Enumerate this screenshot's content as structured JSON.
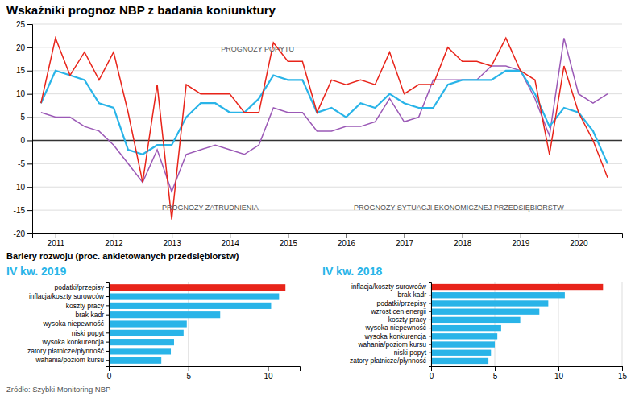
{
  "chart_data": [
    {
      "type": "line",
      "title": "Wskaźniki prognoz NBP z badania koniunktury",
      "annotations": [
        "PROGNOZY POPYTU",
        "PROGNOZY ZATRUDNIENIA",
        "PROGNOZY SYTUACJI EKONOMICZNEJ PRZEDSIĘBIORSTW"
      ],
      "x": [
        2010.75,
        2011.0,
        2011.25,
        2011.5,
        2011.75,
        2012.0,
        2012.25,
        2012.5,
        2012.75,
        2013.0,
        2013.25,
        2013.5,
        2013.75,
        2014.0,
        2014.25,
        2014.5,
        2014.75,
        2015.0,
        2015.25,
        2015.5,
        2015.75,
        2016.0,
        2016.25,
        2016.5,
        2016.75,
        2017.0,
        2017.25,
        2017.5,
        2017.75,
        2018.0,
        2018.25,
        2018.5,
        2018.75,
        2019.0,
        2019.25,
        2019.5,
        2019.75,
        2020.0,
        2020.25,
        2020.5
      ],
      "series": [
        {
          "color": "#e8241a",
          "values": [
            8,
            22,
            14,
            19,
            13,
            19,
            6,
            -9,
            12,
            -17,
            12,
            10,
            10,
            10,
            6,
            6,
            21,
            17,
            17,
            6,
            13,
            12,
            13,
            12,
            19,
            10,
            12,
            12,
            20,
            17,
            17,
            16,
            22,
            15,
            13,
            -3,
            16,
            6,
            0,
            -8
          ]
        },
        {
          "color": "#29b4e8",
          "values": [
            8,
            15,
            14,
            13,
            8,
            7,
            -2,
            -3,
            -1,
            -1,
            5,
            8,
            8,
            6,
            6,
            9,
            14,
            13,
            13,
            6,
            7,
            5,
            8,
            7,
            10,
            8,
            7,
            7,
            12,
            13,
            13,
            13,
            15,
            15,
            10,
            3,
            7,
            6,
            2,
            -5
          ]
        },
        {
          "color": "#9b59b6",
          "values": [
            6,
            5,
            5,
            3,
            2,
            -1,
            -5,
            -9,
            -2,
            -11,
            -3,
            -2,
            -1,
            -2,
            -3,
            -1,
            7,
            6,
            6,
            2,
            2,
            3,
            3,
            4,
            9,
            4,
            5,
            13,
            13,
            13,
            13,
            16,
            16,
            15,
            9,
            1,
            22,
            10,
            8,
            10
          ]
        }
      ],
      "xlim": [
        2010.6,
        2020.75
      ],
      "xticks": [
        2011,
        2012,
        2013,
        2014,
        2015,
        2016,
        2017,
        2018,
        2019,
        2020
      ],
      "ylim": [
        -20,
        25
      ],
      "yticks": [
        -20,
        -15,
        -10,
        -5,
        0,
        5,
        10,
        15,
        20,
        25
      ],
      "grid": true
    },
    {
      "type": "bar",
      "orientation": "horizontal",
      "title": "IV kw. 2019",
      "subtitle": "Bariery rozwoju (proc. ankietowanych przedsiębiorstw)",
      "categories": [
        "wahania/poziom kursu",
        "zatory płatnicze/płynność",
        "wysoka konkurencja",
        "niski popyt",
        "wysoka niepewność",
        "brak kadr",
        "koszty pracy",
        "inflacja/koszty surowców",
        "podatki/przepisy"
      ],
      "values": [
        3.3,
        3.9,
        4.1,
        4.7,
        4.9,
        7.0,
        10.2,
        10.7,
        11.1
      ],
      "colors": [
        "#29b4e8",
        "#29b4e8",
        "#29b4e8",
        "#29b4e8",
        "#29b4e8",
        "#29b4e8",
        "#29b4e8",
        "#29b4e8",
        "#e8241a"
      ],
      "xlim": [
        0,
        12
      ],
      "xticks": [
        0,
        5,
        10
      ],
      "grid": true
    },
    {
      "type": "bar",
      "orientation": "horizontal",
      "title": "IV kw. 2018",
      "annotations": [
        "Źródło: Szybki Monitoring NBP"
      ],
      "categories": [
        "zatory płatnicze/płynność",
        "niski popyt",
        "wahania/poziom kursu",
        "wysoka konkurencja",
        "wysoka niepewność",
        "koszty pracy",
        "wzrost cen energii",
        "podatki/przepisy",
        "brak kadr",
        "inflacja/koszty surowców"
      ],
      "values": [
        4.5,
        4.7,
        5.0,
        5.2,
        5.5,
        7.0,
        8.5,
        9.2,
        10.5,
        13.5
      ],
      "colors": [
        "#29b4e8",
        "#29b4e8",
        "#29b4e8",
        "#29b4e8",
        "#29b4e8",
        "#29b4e8",
        "#29b4e8",
        "#29b4e8",
        "#29b4e8",
        "#e8241a"
      ],
      "xlim": [
        0,
        15
      ],
      "xticks": [
        0,
        5,
        10,
        15
      ],
      "grid": true
    }
  ]
}
